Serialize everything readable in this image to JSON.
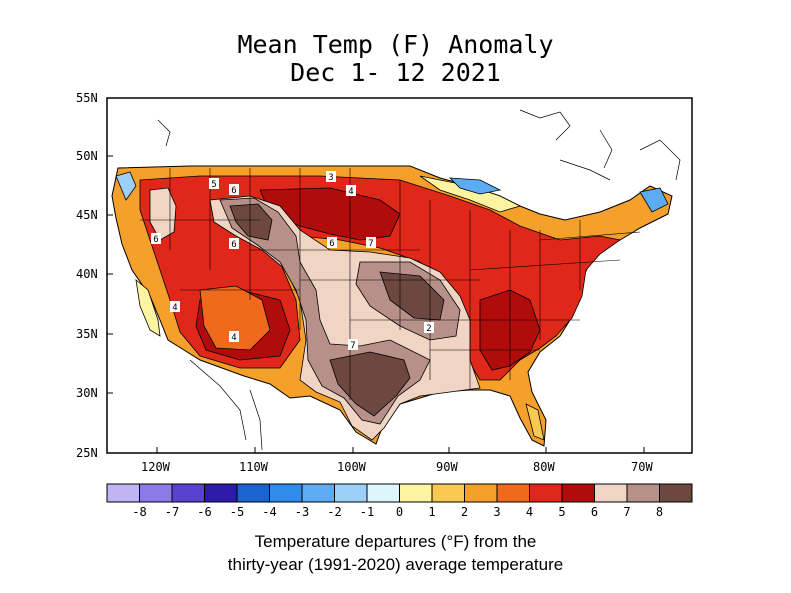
{
  "title": {
    "line1": "Mean Temp (F) Anomaly",
    "line2": "Dec 1- 12 2021"
  },
  "axes": {
    "lat_labels": [
      "55N",
      "50N",
      "45N",
      "40N",
      "35N",
      "30N",
      "25N"
    ],
    "lon_labels": [
      "120W",
      "110W",
      "100W",
      "90W",
      "80W",
      "70W"
    ]
  },
  "colorbar": {
    "ticks": [
      "-8",
      "-7",
      "-6",
      "-5",
      "-4",
      "-3",
      "-2",
      "-1",
      "0",
      "1",
      "2",
      "3",
      "4",
      "5",
      "6",
      "7",
      "8"
    ],
    "colors": [
      "#c0b4f4",
      "#8c7ae8",
      "#5a42d0",
      "#2e1aa8",
      "#1a64d2",
      "#2f8cec",
      "#5cacf4",
      "#9cd0f8",
      "#dcf6fc",
      "#fcf4a0",
      "#f8c850",
      "#f4a02a",
      "#f06a1e",
      "#e0281a",
      "#b00c0c",
      "#f0d4c4",
      "#b8908a",
      "#6c4840"
    ]
  },
  "contour_labels": [
    "5",
    "6",
    "3",
    "4",
    "6",
    "6",
    "6",
    "7",
    "4",
    "4",
    "2",
    "7"
  ],
  "caption": {
    "line1": "Temperature departures (°F) from the",
    "line2": "thirty-year (1991-2020) average temperature"
  }
}
